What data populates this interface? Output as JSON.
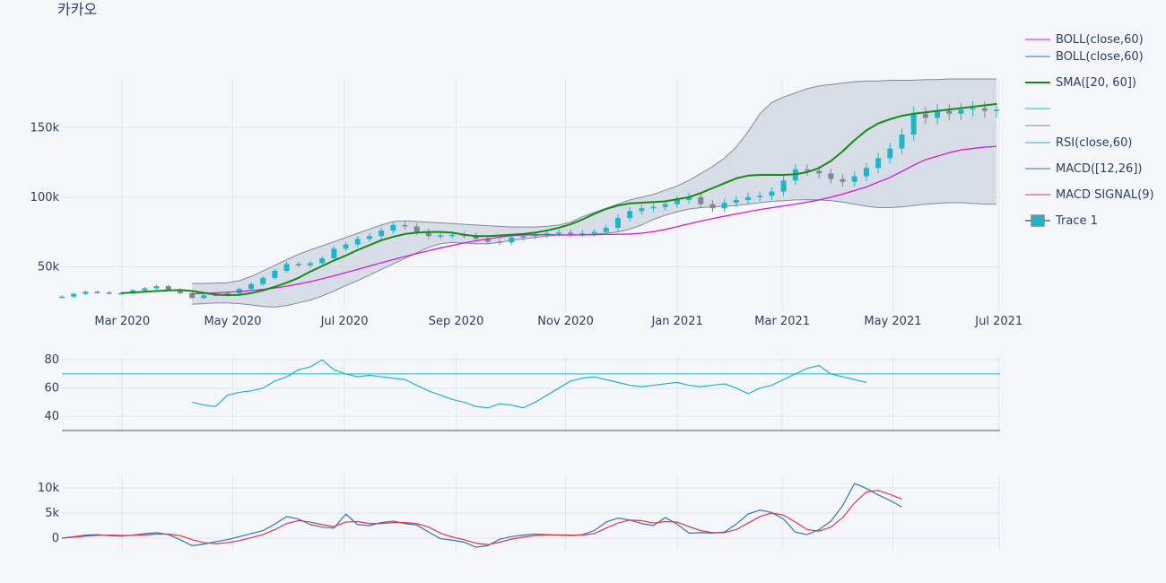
{
  "title": "카카오",
  "colors": {
    "background": "#f4f6fa",
    "grid": "#e1e6ef",
    "boll_mid": "#d31ad3",
    "boll_band": "#7f8b99",
    "band_fill": "#d3dae4",
    "sma": "#168a16",
    "rsi": "#1ab7c8",
    "macd": "#2f76b8",
    "macd_signal": "#d9394b",
    "candle_up": "#1ab7c8",
    "candle_down": "#808894"
  },
  "chart_data": [
    {
      "type": "candlestick",
      "panel": "price",
      "x_ticks": [
        "Mar 2020",
        "May 2020",
        "Jul 2020",
        "Sep 2020",
        "Nov 2020",
        "Jan 2021",
        "Mar 2021",
        "May 2021",
        "Jul 2021"
      ],
      "y_ticks": [
        "50k",
        "100k",
        "150k"
      ],
      "y_tick_values": [
        50000,
        100000,
        150000
      ],
      "ylim": [
        18000,
        185000
      ],
      "x_domain_weeks": [
        0,
        79.3
      ],
      "weeks": [
        0,
        1,
        2,
        3,
        4,
        5,
        6,
        7,
        8,
        9,
        10,
        11,
        12,
        13,
        14,
        15,
        16,
        17,
        18,
        19,
        20,
        21,
        22,
        23,
        24,
        25,
        26,
        27,
        28,
        29,
        30,
        31,
        32,
        33,
        34,
        35,
        36,
        37,
        38,
        39,
        40,
        41,
        42,
        43,
        44,
        45,
        46,
        47,
        48,
        49,
        50,
        51,
        52,
        53,
        54,
        55,
        56,
        57,
        58,
        59,
        60,
        61,
        62,
        63,
        64,
        65,
        66,
        67,
        68,
        69,
        70,
        71,
        72,
        73,
        74,
        75,
        76,
        77,
        78,
        79
      ],
      "close": [
        28500,
        30500,
        32000,
        31500,
        31000,
        31000,
        33000,
        34500,
        36000,
        33500,
        31000,
        27500,
        29500,
        30000,
        31000,
        34000,
        37500,
        42000,
        47000,
        52000,
        51000,
        52500,
        56000,
        63000,
        66000,
        70000,
        72000,
        76000,
        80000,
        79000,
        75000,
        72000,
        72500,
        73000,
        72500,
        70000,
        68000,
        67500,
        71000,
        72000,
        73000,
        74000,
        74500,
        73500,
        74000,
        75000,
        78000,
        85000,
        90000,
        92000,
        93000,
        95000,
        98000,
        100000,
        95000,
        92000,
        96000,
        98000,
        100000,
        101000,
        104000,
        112000,
        120000,
        119000,
        117000,
        113000,
        111000,
        115000,
        121000,
        128000,
        135000,
        145000,
        160000,
        157000,
        162000,
        160000,
        163000,
        164000,
        162000,
        163000
      ],
      "series": [
        {
          "name": "BOLL(close,60)",
          "role": "middle",
          "start_week": 11,
          "values": [
            30500,
            30800,
            31200,
            31700,
            32200,
            32900,
            33700,
            34700,
            36000,
            37600,
            39300,
            41300,
            43500,
            45800,
            48100,
            50500,
            52800,
            55100,
            57300,
            59400,
            61500,
            63500,
            65300,
            67100,
            68600,
            70000,
            71300,
            72300,
            72800,
            73000,
            73000,
            72800,
            72800,
            72900,
            73000,
            73200,
            73300,
            73500,
            74100,
            75200,
            76800,
            78800,
            80800,
            82800,
            84600,
            86300,
            87900,
            89600,
            91100,
            92400,
            93700,
            95000,
            96400,
            98000,
            100000,
            102200,
            104700,
            107400,
            110800,
            114200,
            118500,
            123000,
            127000,
            129500,
            132000,
            134000,
            135000,
            136000,
            136500
          ]
        },
        {
          "name": "BOLL(close,60)",
          "role": "bands",
          "start_week": 11,
          "upper": [
            38000,
            38000,
            38200,
            38500,
            40000,
            43000,
            47000,
            51000,
            55000,
            59000,
            62000,
            65000,
            68000,
            71000,
            74000,
            77000,
            80000,
            82500,
            83000,
            82500,
            82000,
            81500,
            81000,
            80500,
            80000,
            79500,
            79000,
            78500,
            78500,
            78500,
            79000,
            80000,
            82000,
            86000,
            89000,
            92000,
            95000,
            98000,
            100000,
            102000,
            105000,
            108000,
            112000,
            117000,
            122000,
            128000,
            136000,
            147000,
            160000,
            168000,
            172000,
            175000,
            178000,
            180000,
            181000,
            182000,
            183000,
            183500,
            183500,
            184000,
            184000,
            184000,
            184500,
            184500,
            185000,
            185000,
            185000,
            185000,
            185000
          ],
          "lower": [
            23000,
            23500,
            24000,
            24000,
            23500,
            22500,
            21500,
            21000,
            22000,
            24000,
            26000,
            29000,
            32500,
            36500,
            40000,
            44000,
            48000,
            52000,
            56000,
            60000,
            64000,
            66500,
            67500,
            67000,
            66500,
            66500,
            67500,
            69000,
            70000,
            71000,
            72000,
            73000,
            73000,
            73000,
            73500,
            74000,
            75000,
            77000,
            80000,
            84000,
            87000,
            89500,
            91500,
            92500,
            93000,
            93500,
            94000,
            95000,
            96000,
            97000,
            97500,
            98000,
            98200,
            98000,
            97500,
            96500,
            95000,
            93500,
            92500,
            92500,
            93000,
            94000,
            95000,
            95500,
            96000,
            96000,
            95500,
            95000,
            95000
          ]
        },
        {
          "name": "SMA([20, 60])",
          "start_week": 5,
          "values": [
            31000,
            31500,
            32000,
            32500,
            33000,
            33200,
            32600,
            31200,
            30000,
            29500,
            29800,
            31000,
            33000,
            35500,
            38500,
            42000,
            46500,
            50500,
            54500,
            58000,
            62000,
            65500,
            69000,
            71500,
            73500,
            74500,
            75000,
            75000,
            74500,
            73000,
            72000,
            72000,
            72500,
            73000,
            73500,
            74500,
            76000,
            78000,
            80500,
            84000,
            88000,
            91500,
            94000,
            95500,
            96000,
            96500,
            97000,
            98500,
            100000,
            103000,
            106500,
            110000,
            113500,
            115500,
            116000,
            116000,
            116000,
            116500,
            118000,
            121000,
            126000,
            133000,
            141000,
            148000,
            153000,
            156000,
            158500,
            160000,
            161000,
            162000,
            163000,
            164000,
            165000,
            166000,
            167000
          ]
        }
      ]
    },
    {
      "type": "line",
      "panel": "rsi",
      "y_ticks": [
        "40",
        "60",
        "80"
      ],
      "y_tick_values": [
        40,
        60,
        80
      ],
      "ylim": [
        30,
        82
      ],
      "reference_level": 70,
      "series": [
        {
          "name": "RSI(close,60)",
          "start_week": 11,
          "values": [
            50,
            48,
            47,
            55,
            57,
            58,
            60,
            65,
            68,
            73,
            75,
            80,
            73,
            70,
            68,
            69,
            68,
            67,
            66,
            62,
            58,
            55,
            52,
            50,
            47,
            46,
            49,
            48,
            46,
            50,
            55,
            60,
            65,
            67,
            68,
            66,
            64,
            62,
            61,
            62,
            63,
            64,
            62,
            61,
            62,
            63,
            60,
            56,
            60,
            62,
            66,
            70,
            74,
            76,
            70,
            68,
            66,
            64
          ]
        }
      ]
    },
    {
      "type": "line",
      "panel": "macd",
      "y_ticks": [
        "0",
        "5k",
        "10k"
      ],
      "y_tick_values": [
        0,
        5000,
        10000
      ],
      "ylim": [
        -2500,
        12500
      ],
      "series": [
        {
          "name": "MACD([12,26])",
          "start_week": 0,
          "values": [
            0,
            300,
            600,
            700,
            500,
            400,
            600,
            900,
            1100,
            700,
            -300,
            -1500,
            -1200,
            -700,
            -300,
            300,
            900,
            1500,
            2800,
            4300,
            3800,
            2700,
            2200,
            2000,
            4800,
            2700,
            2500,
            3100,
            3400,
            2900,
            2600,
            1200,
            -100,
            -400,
            -800,
            -1800,
            -1500,
            -200,
            300,
            600,
            800,
            700,
            600,
            500,
            700,
            1500,
            3200,
            4000,
            3600,
            2900,
            2500,
            4100,
            2800,
            1000,
            1100,
            1000,
            1200,
            2800,
            4800,
            5600,
            5100,
            3800,
            1200,
            700,
            1700,
            3400,
            6500,
            10900,
            9900,
            8600,
            7500,
            6200
          ]
        },
        {
          "name": "MACD SIGNAL(9)",
          "start_week": 0,
          "values": [
            0,
            200,
            400,
            550,
            600,
            550,
            560,
            650,
            800,
            800,
            500,
            -300,
            -900,
            -1100,
            -900,
            -500,
            100,
            700,
            1700,
            2900,
            3500,
            3200,
            2700,
            2300,
            3200,
            3300,
            2900,
            2900,
            3100,
            3100,
            2900,
            2200,
            1000,
            200,
            -300,
            -1000,
            -1300,
            -800,
            -200,
            200,
            500,
            650,
            650,
            600,
            600,
            900,
            2000,
            3000,
            3600,
            3500,
            3000,
            3300,
            3200,
            2300,
            1500,
            1100,
            1100,
            1700,
            3000,
            4300,
            5000,
            4600,
            3200,
            1700,
            1400,
            2200,
            4100,
            7000,
            9200,
            9500,
            8700,
            7800
          ]
        }
      ]
    }
  ],
  "legend": [
    {
      "label": "BOLL(close,60)",
      "color": "#d31ad3",
      "kind": "line"
    },
    {
      "label": "BOLL(close,60)",
      "color": "#2f76b8",
      "kind": "line"
    },
    {
      "label": "SMA([20, 60])",
      "color": "#168a16",
      "kind": "thick-line"
    },
    {
      "label": "",
      "color": "#1ab7c8",
      "kind": "line"
    },
    {
      "label": "",
      "color": "#808894",
      "kind": "line"
    },
    {
      "label": "RSI(close,60)",
      "color": "#1ab7c8",
      "kind": "line"
    },
    {
      "label": "MACD([12,26])",
      "color": "#2f76b8",
      "kind": "line"
    },
    {
      "label": "MACD SIGNAL(9)",
      "color": "#d9394b",
      "kind": "line"
    },
    {
      "label": "Trace 1",
      "color": "#1ab7c8",
      "kind": "candle-box"
    }
  ]
}
